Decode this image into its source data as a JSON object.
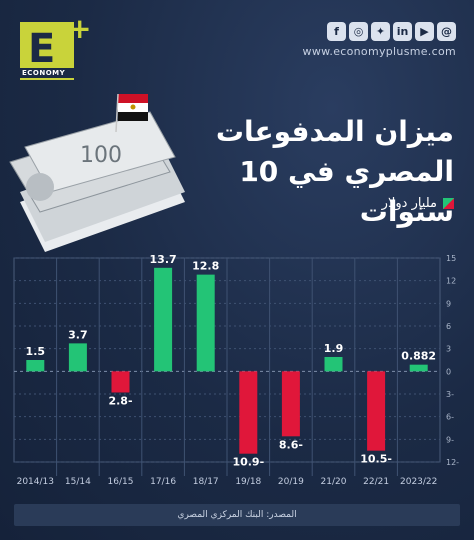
{
  "brand": {
    "logo_letter": "E",
    "logo_plus": "+",
    "logo_word": "ECONOMY",
    "website": "www.economyplusme.com"
  },
  "social_icons": [
    "facebook-icon",
    "instagram-icon",
    "twitter-icon",
    "linkedin-icon",
    "youtube-icon",
    "threads-icon"
  ],
  "title": "ميزان المدفوعات المصري في 10 سنوات",
  "unit_label": "مليار دولار",
  "source": "المصدر: البنك المركزي المصري",
  "colors": {
    "positive": "#23c476",
    "negative": "#e0173a",
    "background": "#1b2a45"
  },
  "chart_data": {
    "type": "bar",
    "categories": [
      "2014/13",
      "15/14",
      "16/15",
      "17/16",
      "18/17",
      "19/18",
      "20/19",
      "21/20",
      "22/21",
      "2023/22"
    ],
    "values": [
      1.5,
      3.7,
      -2.8,
      13.7,
      12.8,
      -10.9,
      -8.6,
      1.9,
      -10.5,
      0.882
    ],
    "value_labels": [
      "1.5",
      "3.7",
      "2.8-",
      "13.7",
      "12.8",
      "10.9-",
      "8.6-",
      "1.9",
      "10.5-",
      "0.882"
    ],
    "y_ticks": [
      "15",
      "12",
      "9",
      "6",
      "3",
      "0",
      "3-",
      "6-",
      "9-",
      "12-"
    ],
    "ylim": [
      -12,
      15
    ],
    "grid": true,
    "y_axis_side": "right"
  }
}
